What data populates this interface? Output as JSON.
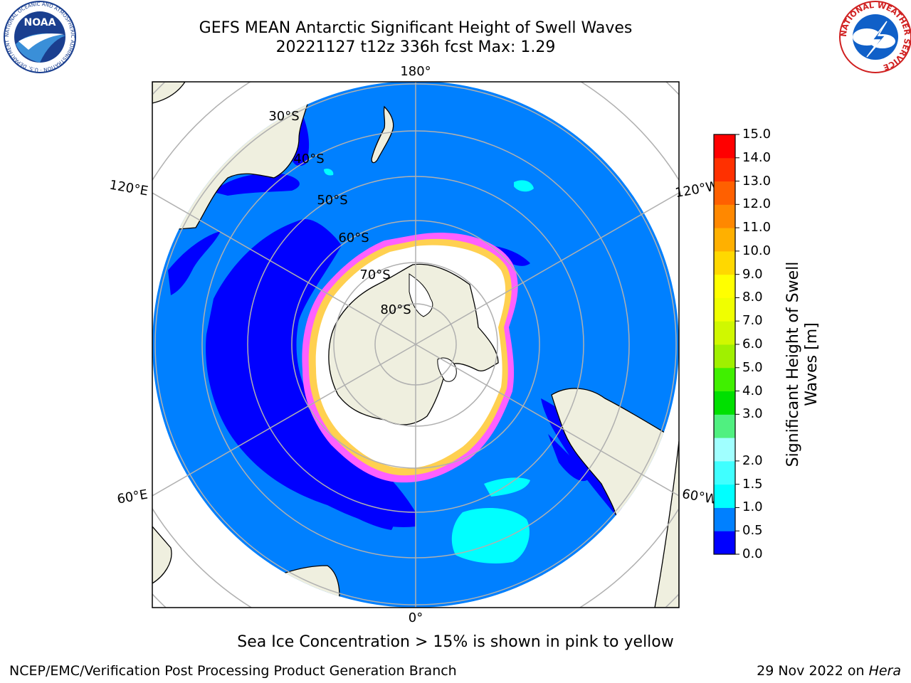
{
  "header": {
    "title_line1": "GEFS MEAN Antarctic Significant Height of Swell Waves",
    "title_line2": "20221127 t12z 336h fcst   Max: 1.29",
    "noaa_logo_text": "NOAA",
    "noaa_ring_text": "NATIONAL OCEANIC AND ATMOSPHERIC ADMINISTRATION · U.S. DEPARTMENT OF COMMERCE",
    "nws_ring_text": "NATIONAL WEATHER SERVICE"
  },
  "map": {
    "projection": "south-polar-stereographic",
    "longitude_labels": [
      "180°",
      "120°E",
      "120°W",
      "60°E",
      "60°W",
      "0°"
    ],
    "latitude_labels": [
      "30°S",
      "40°S",
      "50°S",
      "60°S",
      "70°S",
      "80°S"
    ]
  },
  "colorbar": {
    "title_line1": "Significant Height of Swell",
    "title_line2": "Waves [m]",
    "levels": [
      "0.0",
      "0.5",
      "1.0",
      "1.5",
      "2.0",
      "2.5",
      "3.0",
      "4.0",
      "5.0",
      "6.0",
      "7.0",
      "8.0",
      "9.0",
      "10.0",
      "11.0",
      "12.0",
      "13.0",
      "14.0",
      "15.0"
    ],
    "tick_labels": [
      "0.0",
      "0.5",
      "1.0",
      "1.5",
      "2.0",
      "3.0",
      "4.0",
      "5.0",
      "6.0",
      "7.0",
      "8.0",
      "9.0",
      "10.0",
      "11.0",
      "12.0",
      "13.0",
      "14.0",
      "15.0"
    ],
    "colors": [
      "#0000ff",
      "#0080ff",
      "#00ffff",
      "#40ffff",
      "#a0ffff",
      "#50f080",
      "#00e000",
      "#40f000",
      "#a0f000",
      "#d0f800",
      "#f0ff00",
      "#ffff00",
      "#ffd800",
      "#ffb000",
      "#ff8800",
      "#ff6000",
      "#ff3000",
      "#ff0000"
    ]
  },
  "colors": {
    "ocean_low": "#0000ff",
    "ocean_mid": "#0080ff",
    "ocean_light": "#00ffff",
    "land": "#efefdf",
    "ice_white": "#ffffff",
    "ice_pink": "#ff40ff",
    "ice_yellow": "#ffd050",
    "grid": "#b0b0b0"
  },
  "note": "Sea Ice Concentration > 15% is shown in pink to yellow",
  "footer": {
    "left": "NCEP/EMC/Verification Post Processing Product Generation Branch",
    "right_prefix": "29 Nov 2022 on ",
    "right_host": "Hera"
  }
}
